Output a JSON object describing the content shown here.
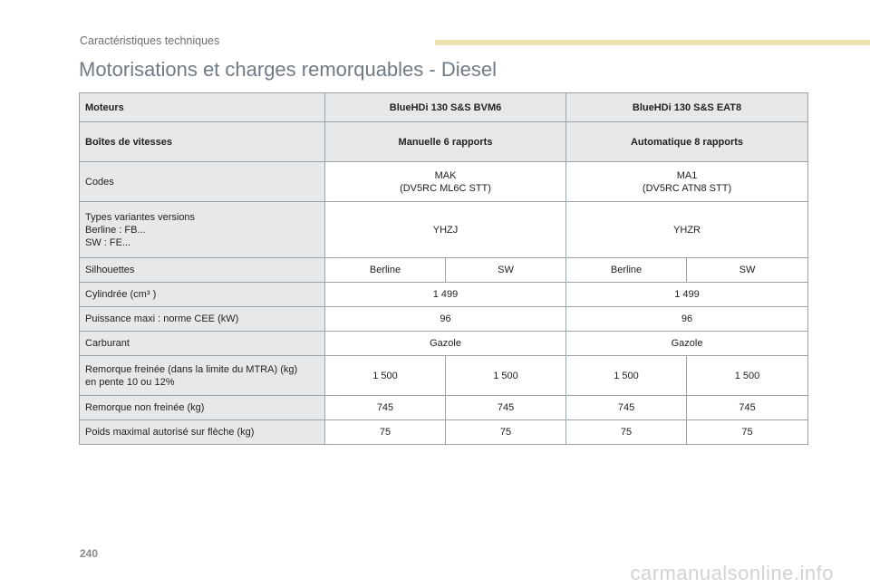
{
  "header": {
    "section": "Caractéristiques techniques",
    "title": "Motorisations et charges remorquables - Diesel"
  },
  "table": {
    "engines_label": "Moteurs",
    "engine_1": "BlueHDi 130 S&S BVM6",
    "engine_2": "BlueHDi 130 S&S EAT8",
    "gearbox_label": "Boîtes de vitesses",
    "gearbox_1": "Manuelle 6 rapports",
    "gearbox_2": "Automatique 8 rapports",
    "codes_label": "Codes",
    "code_1_main": "MAK",
    "code_1_sub": "(DV5RC ML6C STT)",
    "code_2_main": "MA1",
    "code_2_sub": "(DV5RC ATN8 STT)",
    "variants_label_1": "Types variantes versions",
    "variants_label_2": "Berline : FB...",
    "variants_label_3": "SW : FE...",
    "variant_1": "YHZJ",
    "variant_2": "YHZR",
    "body_label": "Silhouettes",
    "body": [
      "Berline",
      "SW",
      "Berline",
      "SW"
    ],
    "displacement_label": "Cylindrée (cm³ )",
    "displacement_1": "1 499",
    "displacement_2": "1 499",
    "power_label": "Puissance maxi : norme CEE (kW)",
    "power_1": "96",
    "power_2": "96",
    "fuel_label": "Carburant",
    "fuel_1": "Gazole",
    "fuel_2": "Gazole",
    "braked_label_1": "Remorque freinée (dans la limite du MTRA) (kg)",
    "braked_label_2": "en pente 10 ou 12%",
    "braked": [
      "1 500",
      "1 500",
      "1 500",
      "1 500"
    ],
    "unbraked_label": "Remorque non freinée (kg)",
    "unbraked": [
      "745",
      "745",
      "745",
      "745"
    ],
    "noseweight_label": "Poids maximal autorisé sur flèche (kg)",
    "noseweight": [
      "75",
      "75",
      "75",
      "75"
    ]
  },
  "footer": {
    "page_number": "240",
    "watermark": "carmanualsonline.info"
  }
}
